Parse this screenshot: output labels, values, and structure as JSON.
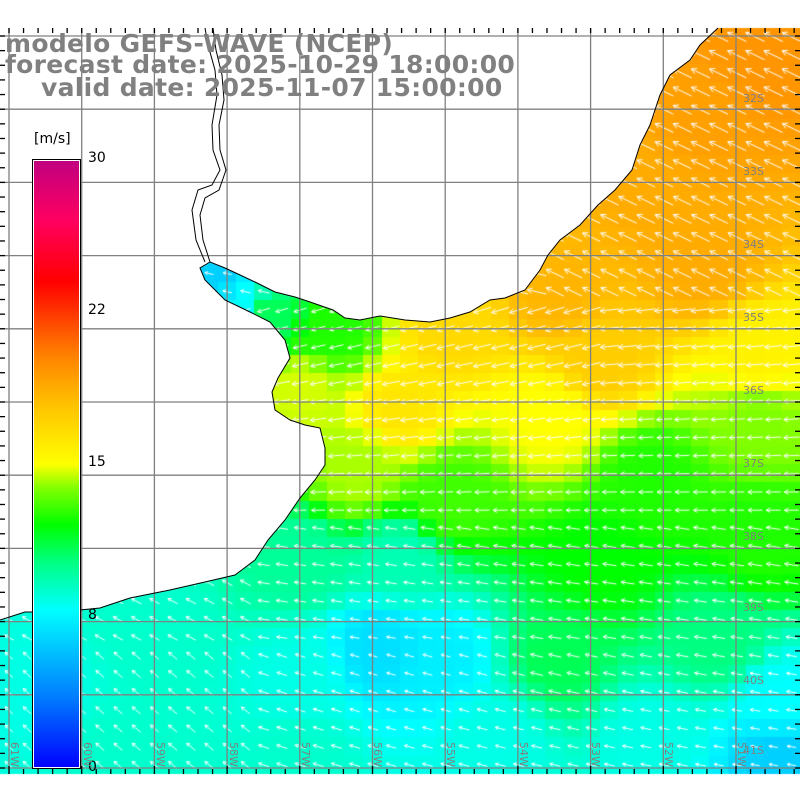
{
  "title": {
    "line1": "modelo GEFS-WAVE (NCEP)",
    "line2": "forecast date: 2025-10-29 18:00:00",
    "line3": "valid date: 2025-11-07 15:00:00"
  },
  "colorbar": {
    "unit": "[m/s]",
    "labels": [
      "30",
      "22",
      "15",
      "8",
      "0"
    ],
    "range": [
      0,
      30
    ],
    "colors": [
      "#0000ff",
      "#0080ff",
      "#00ffff",
      "#00ff00",
      "#ffff00",
      "#ff8000",
      "#ff0000",
      "#c00080"
    ]
  },
  "map": {
    "variable": "wind speed",
    "lat_labels": [
      "32S",
      "33S",
      "34S",
      "35S",
      "36S",
      "37S",
      "38S",
      "39S",
      "40S",
      "41S"
    ],
    "lon_labels": [
      "61W",
      "60W",
      "59W",
      "58W",
      "57W",
      "56W",
      "55W",
      "54W",
      "53W",
      "52W",
      "51W"
    ],
    "land_color": "#ffffff",
    "grid_color": "#808080"
  }
}
